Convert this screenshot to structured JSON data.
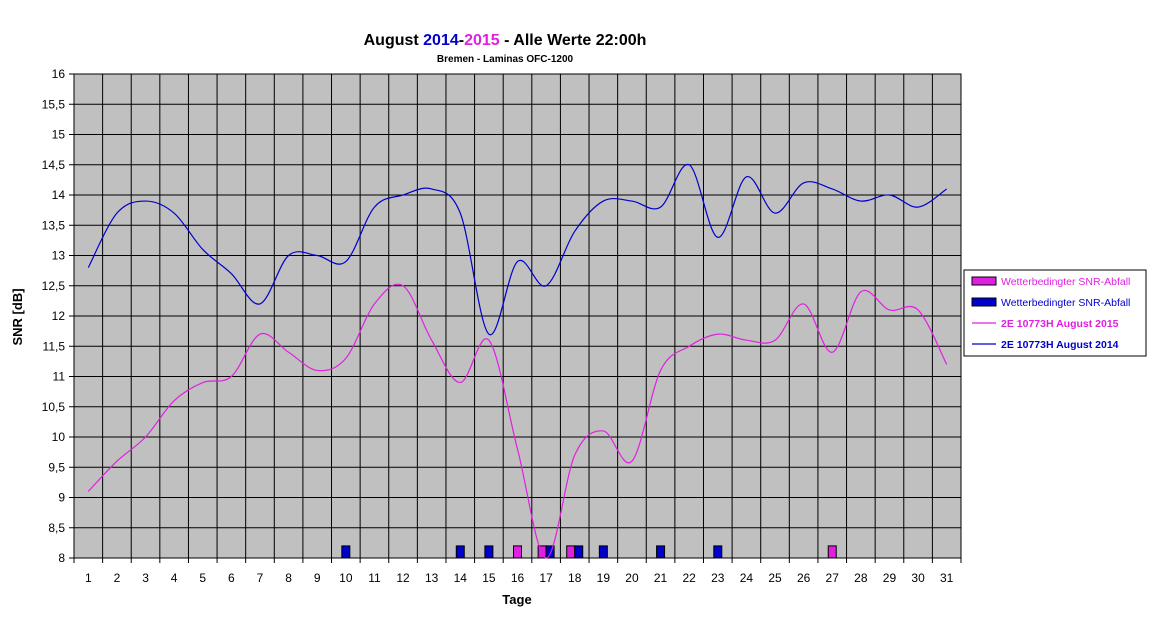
{
  "chart_data": {
    "type": "line",
    "title_parts": [
      {
        "text": "August ",
        "color": "#000000"
      },
      {
        "text": "2014",
        "color": "#0000CC"
      },
      {
        "text": "-",
        "color": "#000000"
      },
      {
        "text": "2015",
        "color": "#E020E0"
      },
      {
        "text": " - Alle Werte 22:00h",
        "color": "#000000"
      }
    ],
    "subtitle": "Bremen - Laminas OFC-1200",
    "xlabel": "Tage",
    "ylabel": "SNR [dB]",
    "x": [
      1,
      2,
      3,
      4,
      5,
      6,
      7,
      8,
      9,
      10,
      11,
      12,
      13,
      14,
      15,
      16,
      17,
      18,
      19,
      20,
      21,
      22,
      23,
      24,
      25,
      26,
      27,
      28,
      29,
      30,
      31
    ],
    "ylim": [
      8,
      16
    ],
    "yticks": [
      "8",
      "8,5",
      "9",
      "9,5",
      "10",
      "10,5",
      "11",
      "11,5",
      "12",
      "12,5",
      "13",
      "13,5",
      "14",
      "14,5",
      "15",
      "15,5",
      "16"
    ],
    "grid": true,
    "legend_position": "right",
    "series": [
      {
        "name": "2E 10773H August 2015",
        "kind": "line",
        "color": "#E020E0",
        "values": [
          9.1,
          9.6,
          10.0,
          10.6,
          10.9,
          11.0,
          11.7,
          11.4,
          11.1,
          11.3,
          12.2,
          12.5,
          11.6,
          10.9,
          11.6,
          9.8,
          8.0,
          9.7,
          10.1,
          9.6,
          11.1,
          11.5,
          11.7,
          11.6,
          11.6,
          12.2,
          11.4,
          12.4,
          12.1,
          12.1,
          11.2
        ]
      },
      {
        "name": "2E 10773H August 2014",
        "kind": "line",
        "color": "#0000CC",
        "values": [
          12.8,
          13.7,
          13.9,
          13.7,
          13.1,
          12.7,
          12.2,
          13.0,
          13.0,
          12.9,
          13.8,
          14.0,
          14.1,
          13.7,
          11.7,
          12.9,
          12.5,
          13.4,
          13.9,
          13.9,
          13.8,
          14.5,
          13.3,
          14.3,
          13.7,
          14.2,
          14.1,
          13.9,
          14.0,
          13.8,
          14.1
        ]
      },
      {
        "name": "Wetterbedingter SNR-Abfall",
        "kind": "marker",
        "color": "#E020E0",
        "days": [
          16,
          17,
          18,
          27
        ],
        "value": 8.2
      },
      {
        "name": "Wetterbedingter SNR-Abfall",
        "kind": "marker",
        "color": "#0000CC",
        "days": [
          10,
          14,
          15,
          17,
          18,
          19,
          21,
          23
        ],
        "value": 8.2
      }
    ],
    "legend": [
      {
        "label": "Wetterbedingter SNR-Abfall",
        "symbol": "box",
        "color": "#E020E0",
        "text_color": "#E020E0",
        "bold": false
      },
      {
        "label": "Wetterbedingter SNR-Abfall",
        "symbol": "box",
        "color": "#0000CC",
        "text_color": "#0000CC",
        "bold": false
      },
      {
        "label": "2E 10773H August 2015",
        "symbol": "line",
        "color": "#E020E0",
        "text_color": "#E020E0",
        "bold": true
      },
      {
        "label": "2E 10773H August 2014",
        "symbol": "line",
        "color": "#0000CC",
        "text_color": "#0000CC",
        "bold": true
      }
    ],
    "plot_background": "#C0C0C0"
  }
}
